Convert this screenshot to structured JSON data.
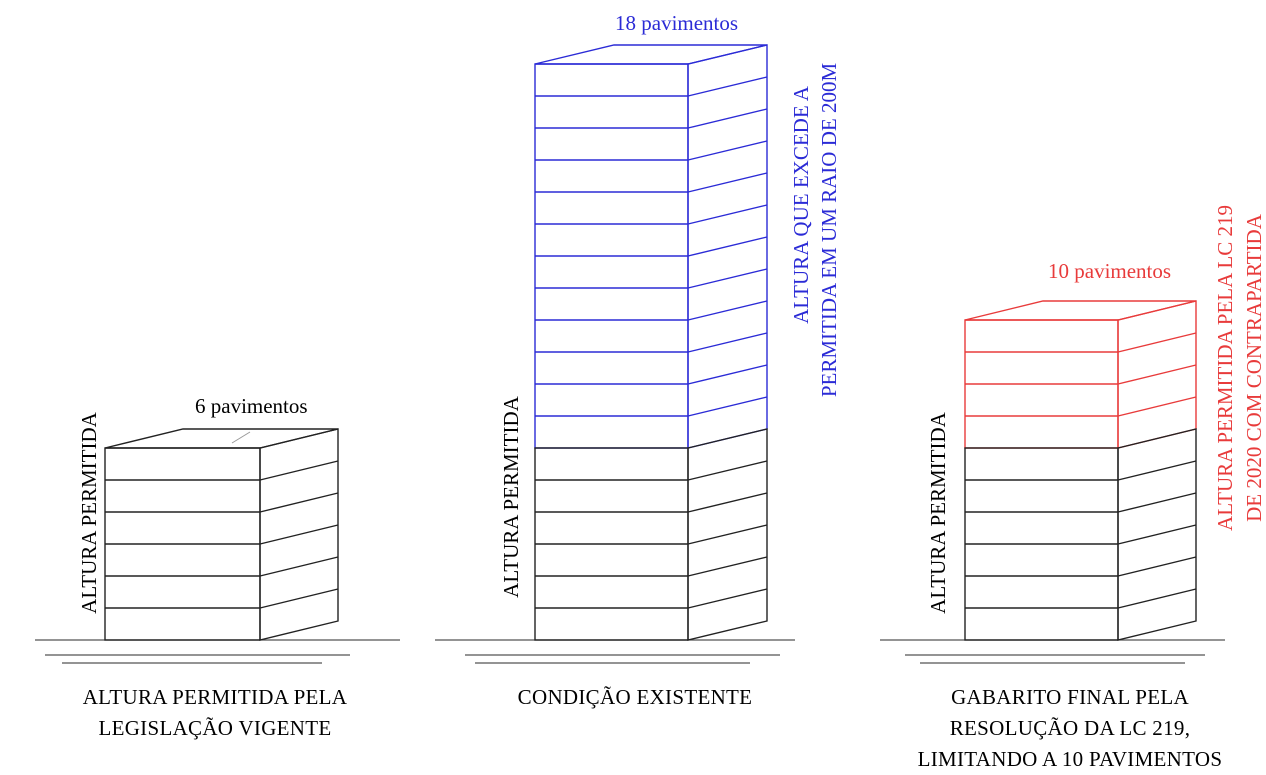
{
  "colors": {
    "existing": "#222222",
    "excess": "#2b2bd6",
    "final": "#e83b3b",
    "ground": "#555555"
  },
  "panels": [
    {
      "floors_label": "6 pavimentos",
      "side_label": "ALTURA PERMITIDA",
      "right_labels": [],
      "caption_lines": [
        "ALTURA PERMITIDA PELA",
        "LEGISLAÇÃO VIGENTE"
      ],
      "floors_black": 6,
      "floors_colored": 0
    },
    {
      "floors_label": "18 pavimentos",
      "side_label": "ALTURA PERMITIDA",
      "right_labels": [
        "ALTURA QUE EXCEDE A",
        "PERMITIDA EM UM RAIO DE 200M"
      ],
      "caption_lines": [
        "CONDIÇÃO EXISTENTE"
      ],
      "floors_black": 6,
      "floors_colored": 12
    },
    {
      "floors_label": "10 pavimentos",
      "side_label": "ALTURA PERMITIDA",
      "right_labels": [
        "ALTURA PERMITIDA PELA LC 219",
        "DE 2020 COM CONTRAPARTIDA"
      ],
      "caption_lines": [
        "GABARITO FINAL PELA",
        "RESOLUÇÃO DA LC 219,",
        "LIMITANDO A 10 PAVIMENTOS"
      ],
      "floors_black": 6,
      "floors_colored": 4
    }
  ]
}
